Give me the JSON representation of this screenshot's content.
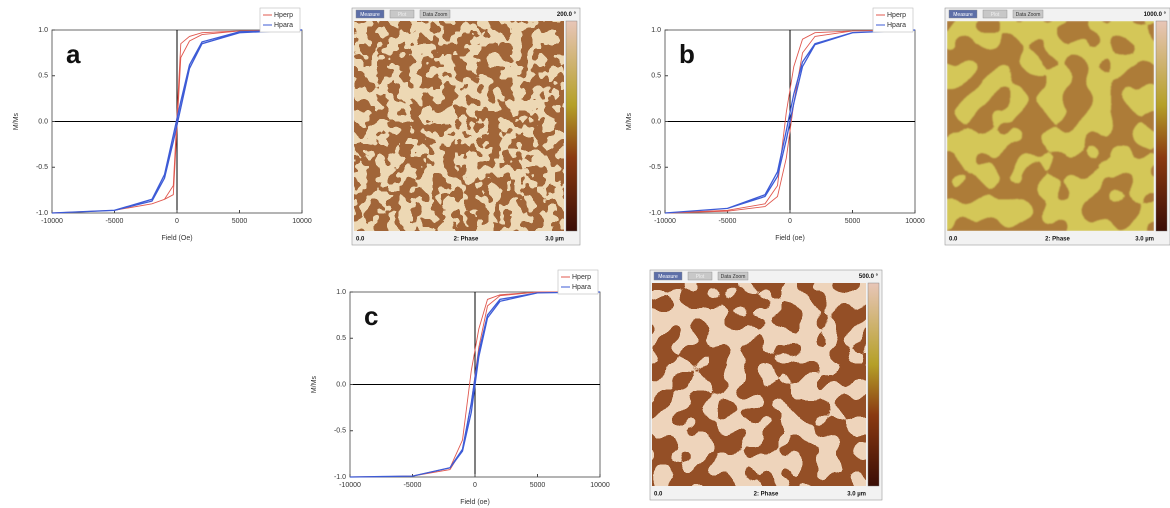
{
  "chart_data": [
    {
      "type": "line",
      "annotation": "a",
      "xlabel": "Field (Oe)",
      "ylabel": "M/Ms",
      "x": [
        10000,
        5000,
        2000,
        1000,
        300,
        -300,
        -1000,
        -2000,
        -5000,
        -10000,
        -10000,
        -5000,
        -2000,
        -1000,
        -300,
        300,
        1000,
        2000,
        5000,
        10000
      ],
      "series": [
        {
          "name": "Hperp",
          "color": "#e0584f",
          "values": [
            1,
            0.99,
            0.97,
            0.93,
            0.85,
            -0.7,
            -0.85,
            -0.9,
            -0.97,
            -1,
            -1,
            -0.97,
            -0.9,
            -0.85,
            -0.8,
            0.7,
            0.88,
            0.95,
            0.99,
            1
          ]
        },
        {
          "name": "Hpara",
          "color": "#3d5bd6",
          "values": [
            1,
            0.98,
            0.87,
            0.62,
            0.22,
            -0.15,
            -0.58,
            -0.85,
            -0.97,
            -1,
            -1,
            -0.97,
            -0.87,
            -0.62,
            -0.22,
            0.15,
            0.58,
            0.85,
            0.97,
            1
          ]
        }
      ],
      "xlim": [
        -10000,
        10000
      ],
      "ylim": [
        -1,
        1
      ],
      "xticks": [
        -10000,
        -5000,
        0,
        5000,
        10000
      ],
      "yticks": [
        {
          "value": -1,
          "label": "-1.0"
        },
        {
          "value": -0.5,
          "label": "-0.5"
        },
        {
          "value": 0,
          "label": "0.0"
        },
        {
          "value": 0.5,
          "label": "0.5"
        },
        {
          "value": 1,
          "label": "1.0"
        }
      ]
    },
    {
      "type": "line",
      "annotation": "b",
      "xlabel": "Field (oe)",
      "ylabel": "M/Ms",
      "x": [
        10000,
        5000,
        2000,
        1000,
        300,
        -300,
        -1000,
        -2000,
        -5000,
        -10000,
        -10000,
        -5000,
        -2000,
        -1000,
        -300,
        300,
        1000,
        2000,
        5000,
        10000
      ],
      "series": [
        {
          "name": "Hperp",
          "color": "#e0584f",
          "values": [
            1,
            0.99,
            0.97,
            0.9,
            0.6,
            0.1,
            -0.7,
            -0.9,
            -0.97,
            -1,
            -1,
            -0.98,
            -0.93,
            -0.82,
            -0.4,
            0.2,
            0.75,
            0.93,
            0.99,
            1
          ]
        },
        {
          "name": "Hpara",
          "color": "#3d5bd6",
          "values": [
            1,
            0.97,
            0.85,
            0.65,
            0.3,
            -0.1,
            -0.55,
            -0.8,
            -0.95,
            -1,
            -1,
            -0.95,
            -0.82,
            -0.6,
            -0.2,
            0.2,
            0.6,
            0.84,
            0.97,
            1
          ]
        }
      ],
      "xlim": [
        -10000,
        10000
      ],
      "ylim": [
        -1,
        1
      ],
      "xticks": [
        -10000,
        -5000,
        0,
        5000,
        10000
      ],
      "yticks": [
        {
          "value": -1,
          "label": "-1.0"
        },
        {
          "value": -0.5,
          "label": "-0.5"
        },
        {
          "value": 0,
          "label": "0.0"
        },
        {
          "value": 0.5,
          "label": "0.5"
        },
        {
          "value": 1,
          "label": "1.0"
        }
      ]
    },
    {
      "type": "line",
      "annotation": "c",
      "xlabel": "Field (oe)",
      "ylabel": "M/Ms",
      "x": [
        10000,
        5000,
        2000,
        1000,
        300,
        -300,
        -1000,
        -2000,
        -5000,
        -10000,
        -10000,
        -5000,
        -2000,
        -1000,
        -300,
        300,
        1000,
        2000,
        5000,
        10000
      ],
      "series": [
        {
          "name": "Hperp",
          "color": "#e0584f",
          "values": [
            1,
            1,
            0.97,
            0.92,
            0.6,
            0.15,
            -0.6,
            -0.9,
            -0.99,
            -1,
            -1,
            -0.99,
            -0.92,
            -0.7,
            -0.2,
            0.4,
            0.85,
            0.96,
            1,
            1
          ]
        },
        {
          "name": "Hpara",
          "color": "#3d5bd6",
          "values": [
            1,
            0.99,
            0.92,
            0.75,
            0.35,
            -0.2,
            -0.7,
            -0.9,
            -0.99,
            -1,
            -1,
            -0.99,
            -0.9,
            -0.72,
            -0.3,
            0.3,
            0.72,
            0.9,
            0.99,
            1
          ]
        }
      ],
      "xlim": [
        -10000,
        10000
      ],
      "ylim": [
        -1,
        1
      ],
      "xticks": [
        -10000,
        -5000,
        0,
        5000,
        10000
      ],
      "yticks": [
        {
          "value": -1,
          "label": "-1.0"
        },
        {
          "value": -0.5,
          "label": "-0.5"
        },
        {
          "value": 0,
          "label": "0.0"
        },
        {
          "value": 0.5,
          "label": "0.5"
        },
        {
          "value": 1,
          "label": "1.0"
        }
      ]
    }
  ],
  "images": [
    {
      "buttons": [
        "Measure",
        "Plot",
        "Data Zoom"
      ],
      "scale": "200.0 °",
      "footer": [
        "0.0",
        "2: Phase",
        "3.0 µm"
      ]
    },
    {
      "buttons": [
        "Measure",
        "Plot",
        "Data Zoom"
      ],
      "scale": "1000.0 °",
      "footer": [
        "0.0",
        "2: Phase",
        "3.0 µm"
      ]
    },
    {
      "buttons": [
        "Measure",
        "Plot",
        "Data Zoom"
      ],
      "scale": "500.0 °",
      "footer": [
        "0.0",
        "2: Phase",
        "3.0 µm"
      ]
    }
  ]
}
